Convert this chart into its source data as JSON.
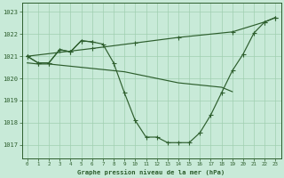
{
  "bg_color": "#c8ead8",
  "grid_color": "#a0cfb0",
  "line_color": "#2d5e2d",
  "title": "Graphe pression niveau de la mer (hPa)",
  "xlim": [
    -0.5,
    23.5
  ],
  "ylim": [
    1016.4,
    1023.4
  ],
  "yticks": [
    1017,
    1018,
    1019,
    1020,
    1021,
    1022,
    1023
  ],
  "xticks": [
    0,
    1,
    2,
    3,
    4,
    5,
    6,
    7,
    8,
    9,
    10,
    11,
    12,
    13,
    14,
    15,
    16,
    17,
    18,
    19,
    20,
    21,
    22,
    23
  ],
  "curve1_x": [
    0,
    1,
    2,
    3,
    4,
    5,
    6,
    7,
    8,
    9,
    10,
    11,
    12,
    13,
    14,
    15,
    16,
    17,
    18,
    19,
    20,
    21,
    22,
    23
  ],
  "curve1_y": [
    1021.0,
    1020.7,
    1020.7,
    1021.3,
    1021.2,
    1021.7,
    1021.65,
    1021.55,
    1020.7,
    1019.35,
    1018.1,
    1017.35,
    1017.35,
    1017.1,
    1017.1,
    1017.1,
    1017.55,
    1018.35,
    1019.35,
    1020.35,
    1021.1,
    1022.05,
    1022.55,
    1022.75
  ],
  "curve2_x": [
    0,
    6,
    10,
    14,
    19,
    22,
    23
  ],
  "curve2_y": [
    1021.0,
    1021.35,
    1021.6,
    1021.85,
    1022.1,
    1022.55,
    1022.75
  ],
  "curve3_x": [
    0,
    1,
    2,
    3,
    4,
    5,
    6
  ],
  "curve3_y": [
    1021.0,
    1020.7,
    1020.7,
    1021.3,
    1021.2,
    1021.7,
    1021.65
  ],
  "curve4_x": [
    0,
    1,
    2,
    3,
    4,
    5,
    6,
    7,
    8,
    9,
    10,
    11,
    12,
    13,
    14,
    15,
    16,
    17,
    18,
    19
  ],
  "curve4_y": [
    1020.7,
    1020.65,
    1020.65,
    1020.6,
    1020.55,
    1020.5,
    1020.45,
    1020.4,
    1020.35,
    1020.3,
    1020.2,
    1020.1,
    1020.0,
    1019.9,
    1019.8,
    1019.75,
    1019.7,
    1019.65,
    1019.6,
    1019.4
  ]
}
